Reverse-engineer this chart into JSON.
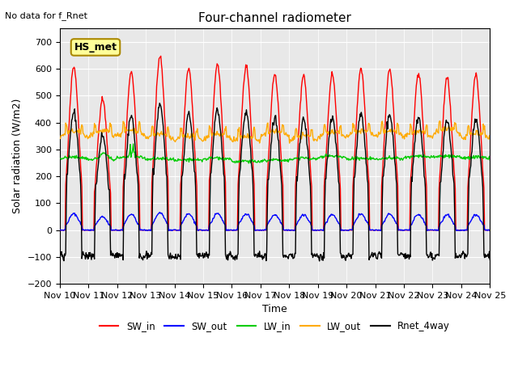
{
  "title": "Four-channel radiometer",
  "top_left_text": "No data for f_Rnet",
  "ylabel": "Solar radiation (W/m2)",
  "xlabel": "Time",
  "ylim": [
    -200,
    750
  ],
  "yticks": [
    -200,
    -100,
    0,
    100,
    200,
    300,
    400,
    500,
    600,
    700
  ],
  "xtick_labels": [
    "Nov 10",
    "Nov 11",
    "Nov 12",
    "Nov 13",
    "Nov 14",
    "Nov 15",
    "Nov 16",
    "Nov 17",
    "Nov 18",
    "Nov 19",
    "Nov 20",
    "Nov 21",
    "Nov 22",
    "Nov 23",
    "Nov 24",
    "Nov 25"
  ],
  "legend_entries": [
    "SW_in",
    "SW_out",
    "LW_in",
    "LW_out",
    "Rnet_4way"
  ],
  "legend_colors": [
    "#ff0000",
    "#0000ff",
    "#00cc00",
    "#ffaa00",
    "#000000"
  ],
  "station_label": "HS_met",
  "station_label_bg": "#ffff99",
  "station_label_border": "#aa8800",
  "background_color": "#e8e8e8",
  "n_days": 15,
  "sw_in_peak": 620,
  "sw_out_peak": 65,
  "lw_in_base": 270,
  "lw_out_base": 340,
  "rnet_peak": 450,
  "rnet_night": -100
}
